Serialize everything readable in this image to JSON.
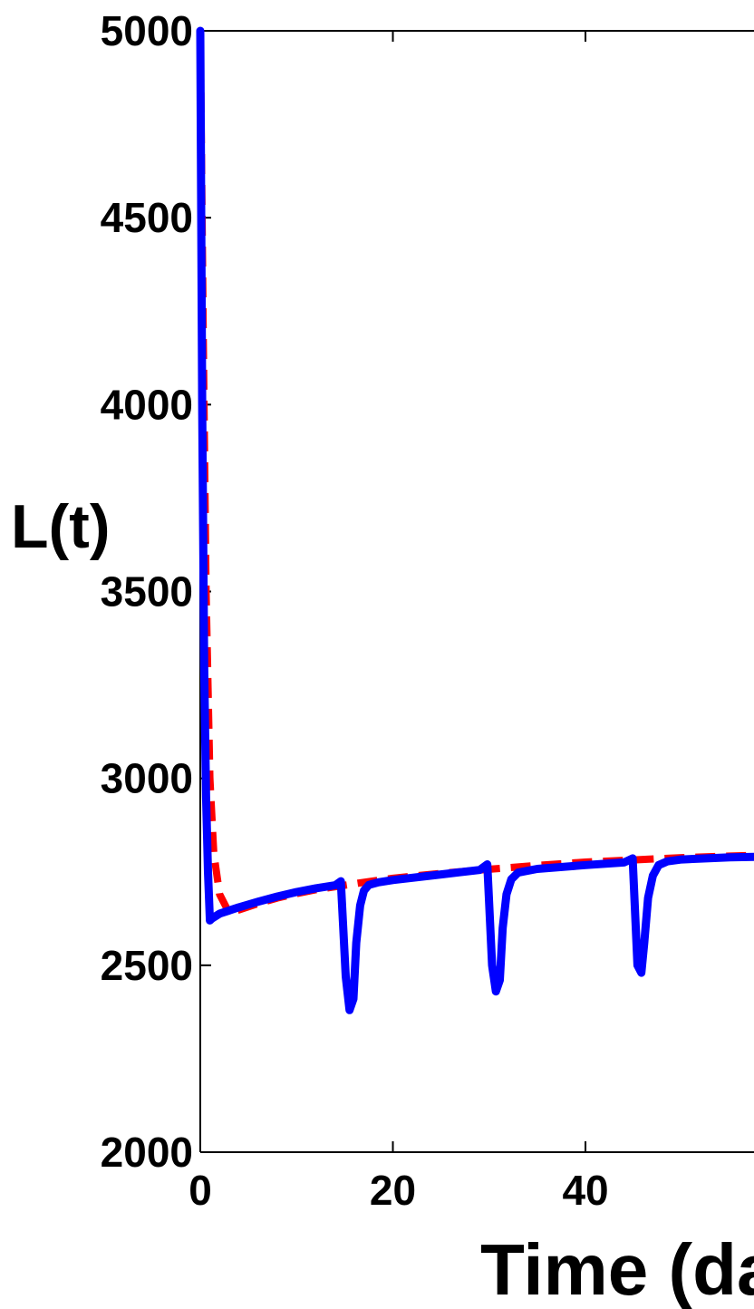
{
  "chart_data": {
    "type": "line",
    "title": "",
    "xlabel": "Time (days)",
    "ylabel": "L(t)",
    "xlim": [
      0,
      57.5
    ],
    "ylim": [
      2000,
      5000
    ],
    "x_ticks": [
      0,
      20,
      40
    ],
    "y_ticks": [
      2000,
      2500,
      3000,
      3500,
      4000,
      4500,
      5000
    ],
    "grid": false,
    "series": [
      {
        "color": "#ff0000",
        "style": "dashed",
        "x": [
          0,
          0.3,
          0.6,
          1.0,
          1.4,
          2.0,
          3.0,
          4.0,
          6.0,
          8.0,
          10.0,
          12.0,
          14.0,
          17.0,
          20.0,
          25.0,
          30.0,
          35.0,
          40.0,
          45.0,
          50.0,
          55.0,
          57.5
        ],
        "y": [
          5000,
          4200,
          3500,
          3000,
          2800,
          2690,
          2640,
          2648,
          2665,
          2680,
          2692,
          2702,
          2710,
          2722,
          2733,
          2746,
          2757,
          2767,
          2776,
          2782,
          2788,
          2792,
          2794
        ]
      },
      {
        "color": "#0000ff",
        "style": "solid",
        "x": [
          0,
          0.2,
          0.4,
          0.6,
          0.8,
          1.0,
          1.2,
          2.0,
          4.0,
          6.0,
          8.0,
          10.0,
          12.0,
          14.0,
          14.6,
          15.1,
          15.5,
          15.9,
          16.2,
          16.6,
          17.0,
          17.5,
          18.5,
          20.0,
          25.0,
          29.0,
          29.8,
          30.3,
          30.7,
          31.1,
          31.4,
          31.8,
          32.3,
          33.0,
          35.0,
          40.0,
          44.0,
          44.9,
          45.4,
          45.8,
          46.1,
          46.5,
          47.0,
          47.6,
          48.5,
          50.0,
          55.0,
          57.5
        ],
        "y": [
          5000,
          4000,
          3300,
          2950,
          2750,
          2620,
          2625,
          2638,
          2655,
          2670,
          2684,
          2696,
          2706,
          2714,
          2725,
          2470,
          2380,
          2410,
          2560,
          2660,
          2700,
          2715,
          2722,
          2728,
          2743,
          2755,
          2770,
          2500,
          2430,
          2460,
          2600,
          2690,
          2730,
          2748,
          2758,
          2768,
          2775,
          2786,
          2500,
          2480,
          2560,
          2680,
          2740,
          2768,
          2778,
          2783,
          2789,
          2790
        ]
      }
    ]
  }
}
